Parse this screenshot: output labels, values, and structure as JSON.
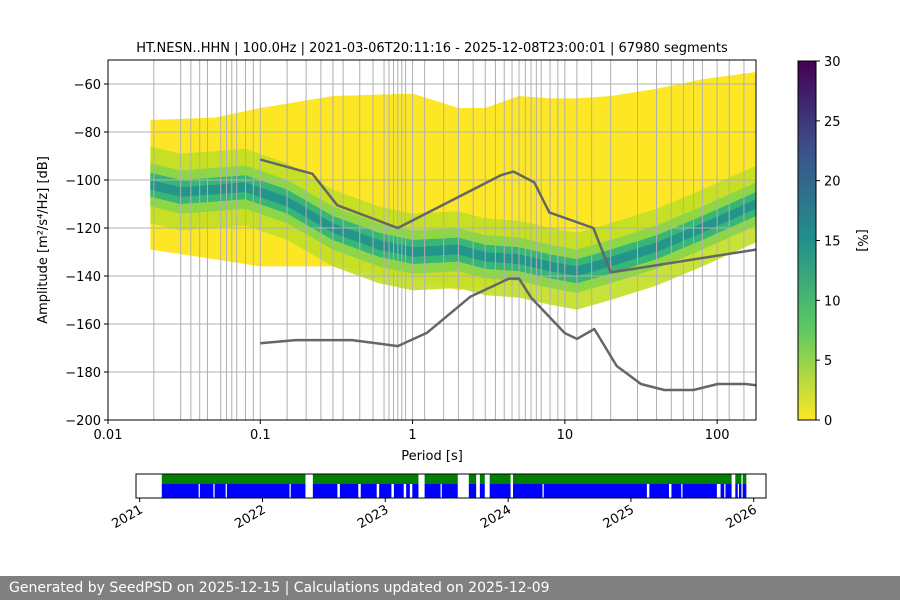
{
  "footer": {
    "text": "Generated by SeedPSD on 2025-12-15 | Calculations updated on 2025-12-09"
  },
  "chart_data": [
    {
      "type": "heatmap",
      "title": "HT.NESN..HHN | 100.0Hz | 2021-03-06T20:11:16 - 2025-12-08T23:00:01 | 67980 segments",
      "xlabel": "Period [s]",
      "ylabel": "Amplitude [m²/s⁴/Hz] [dB]",
      "x_scale": "log",
      "xlim": [
        0.01,
        180
      ],
      "ylim": [
        -200,
        -50
      ],
      "x_ticks": [
        0.01,
        0.1,
        1,
        10,
        100
      ],
      "x_tick_labels": [
        "0.01",
        "0.1",
        "1",
        "10",
        "100"
      ],
      "y_ticks": [
        -200,
        -180,
        -160,
        -140,
        -120,
        -100,
        -80,
        -60
      ],
      "y_tick_labels": [
        "−200",
        "−180",
        "−160",
        "−140",
        "−120",
        "−100",
        "−80",
        "−60"
      ],
      "grid_periods": [
        0.02,
        0.03,
        0.035,
        0.04,
        0.045,
        0.055,
        0.06,
        0.065,
        0.07,
        0.08,
        0.09,
        0.1,
        0.15,
        0.2,
        0.25,
        0.3,
        0.35,
        0.45,
        0.55,
        0.65,
        0.7,
        0.75,
        0.8,
        0.85,
        0.9,
        1,
        1.2,
        1.6,
        2,
        2.5,
        3,
        3.5,
        4,
        4.5,
        5,
        5.5,
        6,
        6.5,
        7,
        8,
        9,
        10,
        12,
        15,
        20,
        30,
        40,
        50,
        60,
        70,
        80,
        100,
        120,
        150
      ],
      "grid": true,
      "colorbar": {
        "label": "[%]",
        "range": [
          0,
          30
        ],
        "ticks": [
          0,
          5,
          10,
          15,
          20,
          25,
          30
        ],
        "colormap": "viridis_r"
      },
      "psd_envelope": {
        "period": [
          0.019,
          0.05,
          0.1,
          0.3,
          1,
          2,
          3,
          5,
          8,
          12,
          20,
          40,
          80,
          180
        ],
        "upper_db": [
          -75,
          -74,
          -70,
          -65,
          -64,
          -70,
          -70,
          -65,
          -66,
          -66,
          -65,
          -62,
          -58,
          -55
        ],
        "lower_db": [
          -129,
          -133,
          -136,
          -136,
          -141,
          -146,
          -144,
          -140,
          -140,
          -144,
          -139,
          -128,
          -122,
          -118
        ]
      },
      "psd_mode": {
        "period": [
          0.019,
          0.03,
          0.05,
          0.08,
          0.15,
          0.3,
          0.6,
          1,
          2,
          3,
          5,
          8,
          12,
          20,
          40,
          80,
          180
        ],
        "db": [
          -102,
          -105,
          -104,
          -103,
          -109,
          -120,
          -127,
          -130,
          -129,
          -132,
          -133,
          -136,
          -138,
          -134,
          -128,
          -120,
          -110
        ]
      },
      "noise_models": [
        {
          "period": [
            0.1,
            0.17,
            0.4,
            0.8,
            1.24,
            2.4,
            4.3,
            5,
            6,
            10,
            12,
            15.6,
            21.9,
            31.6,
            45,
            70,
            101,
            154,
            180
          ],
          "db": [
            -168,
            -166.7,
            -166.7,
            -169.2,
            -163.7,
            -148.6,
            -141.1,
            -141.1,
            -149,
            -163.8,
            -166.2,
            -162.1,
            -177.5,
            -185,
            -187.5,
            -187.5,
            -185,
            -185,
            -185.5
          ]
        },
        {
          "period": [
            0.1,
            0.22,
            0.32,
            0.8,
            3.8,
            4.6,
            6.3,
            7.9,
            15.4,
            20,
            180
          ],
          "db": [
            -91.5,
            -97.4,
            -110.5,
            -120,
            -98,
            -96.5,
            -101,
            -113.5,
            -120,
            -138.5,
            -129
          ]
        }
      ]
    },
    {
      "type": "timeline",
      "x_tick_labels": [
        "2021",
        "2022",
        "2023",
        "2024",
        "2025",
        "2026"
      ],
      "x_ticks": [
        2021.0,
        2022.0,
        2023.0,
        2024.0,
        2025.0,
        2026.0
      ],
      "xlim": [
        2020.97,
        2026.1
      ],
      "data_start": 2021.18,
      "data_end": 2025.94,
      "colors": {
        "coverage": "#008000",
        "data": "#0000ff",
        "gap": "#ffffff"
      },
      "gaps": [
        [
          2022.35,
          2022.41
        ],
        [
          2023.27,
          2023.32
        ],
        [
          2023.59,
          2023.68
        ],
        [
          2023.74,
          2023.77
        ],
        [
          2023.81,
          2023.85
        ],
        [
          2024.02,
          2024.04
        ],
        [
          2025.82,
          2025.85
        ],
        [
          2025.9,
          2025.91
        ]
      ],
      "data_gaps": [
        [
          2021.48,
          2021.49
        ],
        [
          2021.6,
          2021.61
        ],
        [
          2021.7,
          2021.71
        ],
        [
          2022.22,
          2022.23
        ],
        [
          2022.61,
          2022.63
        ],
        [
          2022.78,
          2022.8
        ],
        [
          2022.93,
          2022.95
        ],
        [
          2023.05,
          2023.07
        ],
        [
          2023.15,
          2023.17
        ],
        [
          2023.2,
          2023.22
        ],
        [
          2023.45,
          2023.46
        ],
        [
          2024.28,
          2024.29
        ],
        [
          2025.13,
          2025.15
        ],
        [
          2025.31,
          2025.33
        ],
        [
          2025.41,
          2025.42
        ],
        [
          2025.7,
          2025.73
        ],
        [
          2025.76,
          2025.77
        ],
        [
          2025.87,
          2025.88
        ]
      ]
    }
  ]
}
